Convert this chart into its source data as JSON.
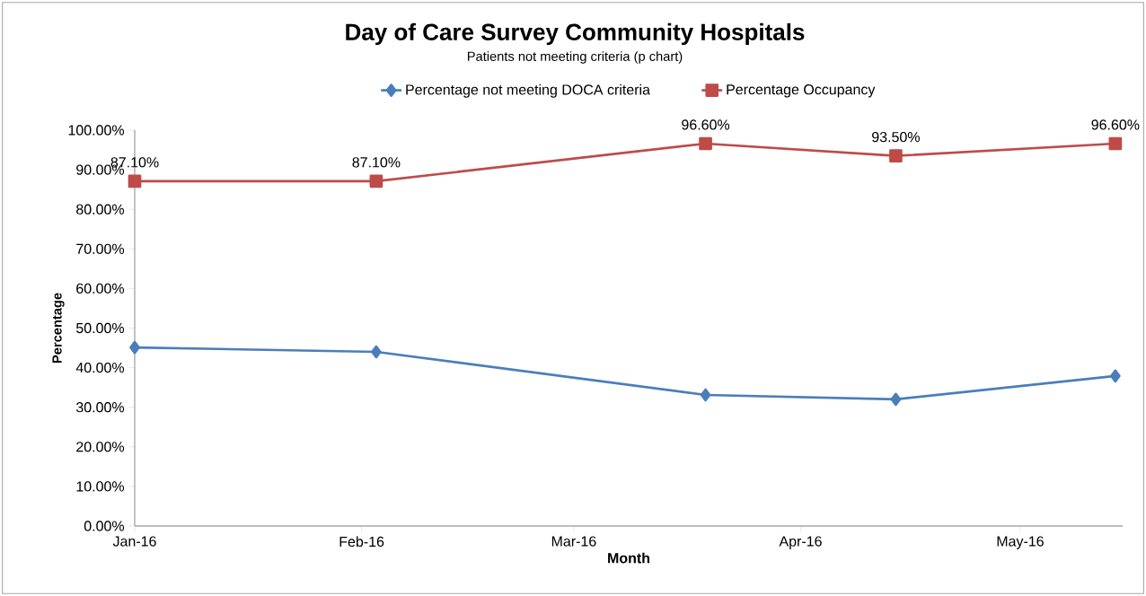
{
  "chart_data": {
    "type": "line",
    "title": "Day of Care Survey Community Hospitals",
    "subtitle": "Patients not meeting criteria (p chart)",
    "xlabel": "Month",
    "ylabel": "Percentage",
    "series": [
      {
        "name": "Percentage not meeting DOCA criteria",
        "color": "#4a7ebb",
        "marker": "diamond",
        "x": [
          "2016-01-01",
          "2016-02-03",
          "2016-03-19",
          "2016-04-14",
          "2016-05-14"
        ],
        "values": [
          45.1,
          44.0,
          33.1,
          32.0,
          37.9
        ]
      },
      {
        "name": "Percentage Occupancy",
        "color": "#be4b48",
        "marker": "square",
        "x": [
          "2016-01-01",
          "2016-02-03",
          "2016-03-19",
          "2016-04-14",
          "2016-05-14"
        ],
        "values": [
          87.1,
          87.1,
          96.6,
          93.5,
          96.6
        ],
        "value_labels": [
          "87.10%",
          "87.10%",
          "96.60%",
          "93.50%",
          "96.60%"
        ]
      }
    ],
    "xlim": [
      "2016-01-01",
      "2016-05-15"
    ],
    "xticks": [
      {
        "value": "2016-01-01",
        "label": "Jan-16"
      },
      {
        "value": "2016-02-01",
        "label": "Feb-16"
      },
      {
        "value": "2016-03-01",
        "label": "Mar-16"
      },
      {
        "value": "2016-04-01",
        "label": "Apr-16"
      },
      {
        "value": "2016-05-01",
        "label": "May-16"
      }
    ],
    "ylim": [
      0,
      100
    ],
    "yticks": [
      {
        "value": 0,
        "label": "0.00%"
      },
      {
        "value": 10,
        "label": "10.00%"
      },
      {
        "value": 20,
        "label": "20.00%"
      },
      {
        "value": 30,
        "label": "30.00%"
      },
      {
        "value": 40,
        "label": "40.00%"
      },
      {
        "value": 50,
        "label": "50.00%"
      },
      {
        "value": 60,
        "label": "60.00%"
      },
      {
        "value": 70,
        "label": "70.00%"
      },
      {
        "value": 80,
        "label": "80.00%"
      },
      {
        "value": 90,
        "label": "90.00%"
      },
      {
        "value": 100,
        "label": "100.00%"
      }
    ],
    "legend": "top",
    "grid": false,
    "line_style": "solid"
  }
}
